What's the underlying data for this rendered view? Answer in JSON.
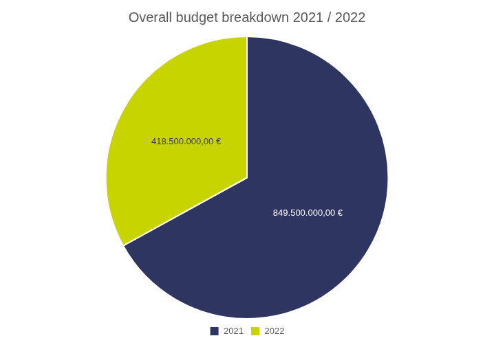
{
  "chart_data": {
    "type": "pie",
    "title": "Overall budget breakdown 2021 / 2022",
    "categories": [
      "2021",
      "2022"
    ],
    "values": [
      849500000.0,
      418500000.0
    ],
    "value_labels": [
      "849.500.000,00 €",
      "418.500.000,00 €"
    ],
    "colors": [
      "#2E3560",
      "#C8D400"
    ],
    "legend": "bottom",
    "data_labels": true
  }
}
